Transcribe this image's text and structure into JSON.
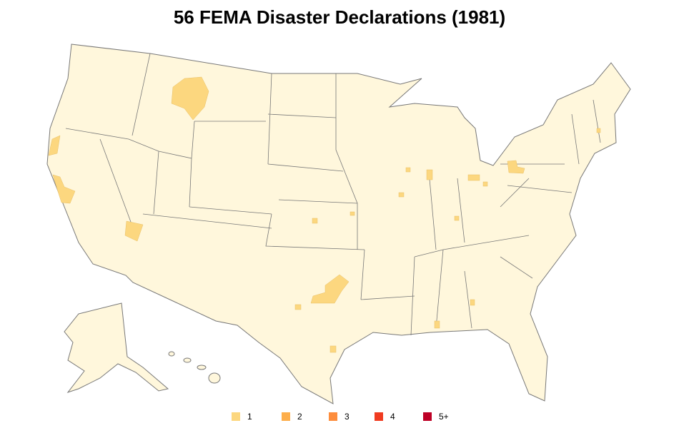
{
  "title": "56 FEMA Disaster Declarations (1981)",
  "legend": [
    {
      "label": "1",
      "color": "#fcd77f"
    },
    {
      "label": "2",
      "color": "#fdae4b"
    },
    {
      "label": "3",
      "color": "#fd8d3c"
    },
    {
      "label": "4",
      "color": "#f03b20"
    },
    {
      "label": "5+",
      "color": "#bd0026"
    }
  ]
}
